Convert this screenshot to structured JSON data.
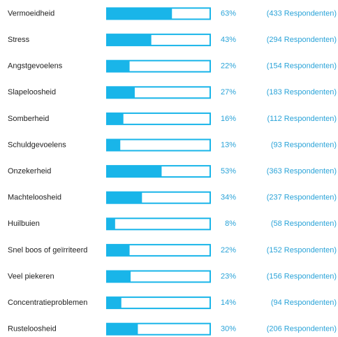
{
  "chart_data": {
    "type": "bar",
    "orientation": "horizontal",
    "color": "#19b5e9",
    "categories": [
      "Vermoeidheid",
      "Stress",
      "Angstgevoelens",
      "Slapeloosheid",
      "Somberheid",
      "Schuldgevoelens",
      "Onzekerheid",
      "Machteloosheid",
      "Huilbuien",
      "Snel boos of geïrriteerd",
      "Veel piekeren",
      "Concentratieproblemen",
      "Rusteloosheid"
    ],
    "values": [
      63,
      43,
      22,
      27,
      16,
      13,
      53,
      34,
      8,
      22,
      23,
      14,
      30
    ],
    "value_labels": [
      "63%",
      "43%",
      "22%",
      "27%",
      "16%",
      "13%",
      "53%",
      "34%",
      "8%",
      "22%",
      "23%",
      "14%",
      "30%"
    ],
    "respondent_labels": [
      "(433 Respondenten)",
      "(294 Respondenten)",
      "(154 Respondenten)",
      "(183 Respondenten)",
      "(112 Respondenten)",
      "(93 Respondenten)",
      "(363 Respondenten)",
      "(237 Respondenten)",
      "(58 Respondenten)",
      "(152 Respondenten)",
      "(156 Respondenten)",
      "(94 Respondenten)",
      "(206 Respondenten)"
    ],
    "xlim": [
      0,
      100
    ]
  }
}
